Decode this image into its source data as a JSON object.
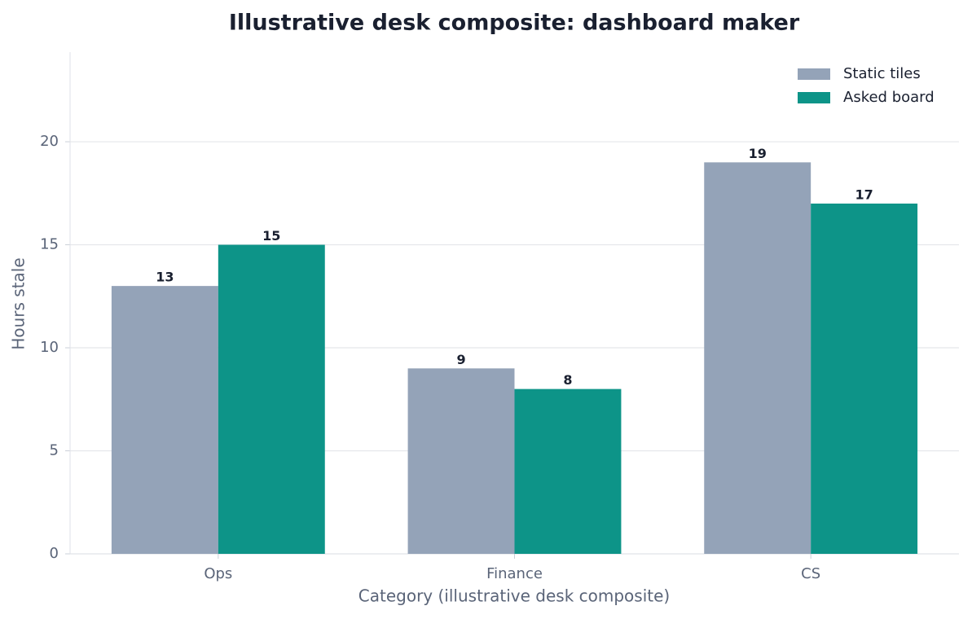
{
  "chart_data": {
    "type": "bar",
    "title": "Illustrative desk composite: dashboard maker",
    "x_label": "Category (illustrative desk composite)",
    "y_label": "Hours stale",
    "categories": [
      "Ops",
      "Finance",
      "CS"
    ],
    "series": [
      {
        "name": "Static tiles",
        "color": "#94a3b8",
        "values": [
          13,
          9,
          19
        ]
      },
      {
        "name": "Asked board",
        "color": "#0d9488",
        "values": [
          15,
          8,
          17
        ]
      }
    ],
    "ylim": [
      0,
      24.35
    ],
    "yticks": [
      0,
      5,
      10,
      15,
      20
    ],
    "grid": true,
    "legend": "upper right"
  }
}
